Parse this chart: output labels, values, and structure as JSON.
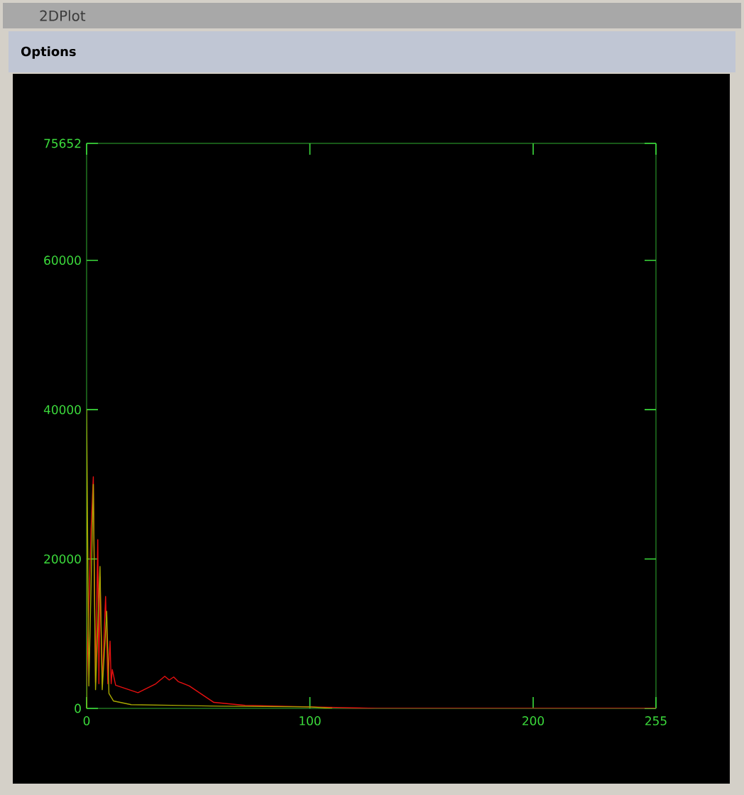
{
  "chart_data": {
    "type": "line",
    "title": "2DPlot",
    "annotations": [
      "Options"
    ],
    "xlim": [
      0,
      255
    ],
    "ylim": [
      0,
      75652
    ],
    "xticks": [
      0,
      100,
      200,
      255
    ],
    "yticks": [
      0,
      20000,
      40000,
      60000,
      75652
    ],
    "grid": false,
    "marker": "none",
    "line_style": "solid",
    "series": [
      {
        "color": "#a8a800",
        "x": [
          0,
          0,
          1,
          3,
          4,
          6,
          7,
          9,
          10,
          12,
          20,
          60,
          100,
          110
        ],
        "values": [
          0,
          40000,
          3000,
          30000,
          2500,
          19000,
          2500,
          13000,
          2000,
          1000,
          500,
          300,
          200,
          0
        ]
      },
      {
        "color": "#e81010",
        "x": [
          0,
          2,
          3,
          4,
          5,
          5.5,
          6,
          7,
          8.5,
          9.5,
          10.5,
          11,
          11.5,
          13,
          23,
          31,
          35,
          37,
          39,
          41,
          46,
          57,
          71,
          100,
          130,
          255
        ],
        "values": [
          3000,
          24000,
          31000,
          3500,
          22600,
          3300,
          17600,
          3300,
          15000,
          3300,
          9000,
          3300,
          5200,
          3100,
          2100,
          3300,
          4300,
          3800,
          4200,
          3600,
          3000,
          800,
          400,
          200,
          0,
          0
        ]
      }
    ]
  }
}
